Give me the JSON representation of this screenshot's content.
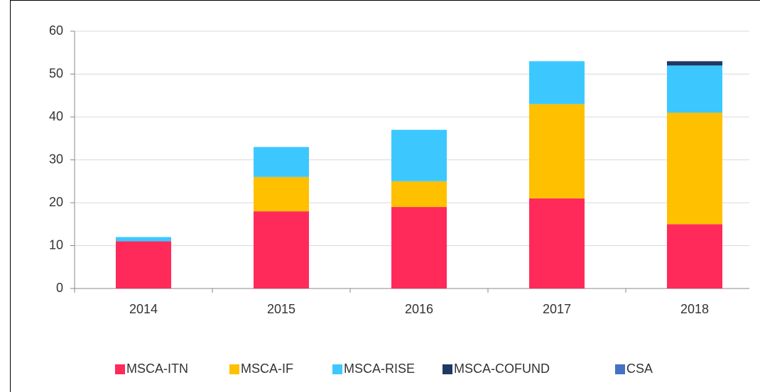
{
  "chart_data": {
    "type": "bar",
    "stacked": true,
    "categories": [
      "2014",
      "2015",
      "2016",
      "2017",
      "2018"
    ],
    "series": [
      {
        "name": "MSCA-ITN",
        "color": "#ff2a5a",
        "values": [
          11,
          18,
          19,
          21,
          15
        ]
      },
      {
        "name": "MSCA-IF",
        "color": "#ffc000",
        "values": [
          0,
          8,
          6,
          22,
          26
        ]
      },
      {
        "name": "MSCA-RISE",
        "color": "#3cc8ff",
        "values": [
          1,
          7,
          12,
          10,
          11
        ]
      },
      {
        "name": "MSCA-COFUND",
        "color": "#1f3864",
        "values": [
          0,
          0,
          0,
          0,
          1
        ]
      },
      {
        "name": "CSA",
        "color": "#4472c4",
        "values": [
          0,
          0,
          0,
          0,
          0
        ]
      }
    ],
    "ylim": [
      0,
      60
    ],
    "yticks": [
      0,
      10,
      20,
      30,
      40,
      50,
      60
    ],
    "grid": true,
    "legend": "bottom"
  }
}
